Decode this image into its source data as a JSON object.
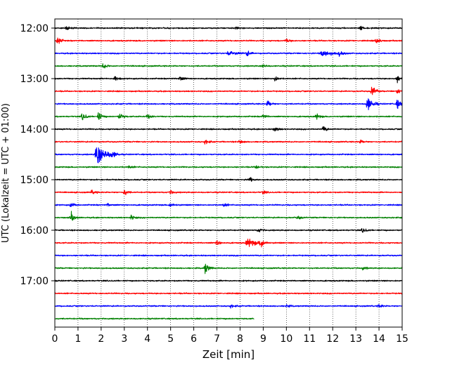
{
  "chart_data": {
    "type": "line",
    "title": "",
    "xlabel": "Zeit  [min]",
    "ylabel": "UTC (Lokalzeit = UTC + 01:00)",
    "x_ticks": [
      "0",
      "1",
      "2",
      "3",
      "4",
      "5",
      "6",
      "7",
      "8",
      "9",
      "10",
      "11",
      "12",
      "13",
      "14",
      "15"
    ],
    "xlim": [
      0,
      15
    ],
    "y_ticks": [
      "12:00",
      "13:00",
      "14:00",
      "15:00",
      "16:00",
      "17:00"
    ],
    "grid": "vertical dotted at each minute",
    "colors": [
      "#000000",
      "#ff0000",
      "#0000ff",
      "#008000"
    ],
    "trace_minutes": 15,
    "last_trace_end_min": 8.6,
    "traces": [
      {
        "start": "12:00",
        "color": "#000000",
        "events": [
          {
            "t": 0.5,
            "a": 0.35
          },
          {
            "t": 7.8,
            "a": 0.3
          },
          {
            "t": 13.2,
            "a": 0.45
          }
        ]
      },
      {
        "start": "12:15",
        "color": "#ff0000",
        "events": [
          {
            "t": 0.1,
            "a": 0.9
          },
          {
            "t": 10.0,
            "a": 0.35
          },
          {
            "t": 13.9,
            "a": 0.6
          }
        ]
      },
      {
        "start": "12:30",
        "color": "#0000ff",
        "events": [
          {
            "t": 7.5,
            "a": 0.5,
            "w": 0.8
          },
          {
            "t": 8.3,
            "a": 0.55
          },
          {
            "t": 11.5,
            "a": 0.6,
            "w": 1.2
          },
          {
            "t": 12.3,
            "a": 0.4
          }
        ]
      },
      {
        "start": "12:45",
        "color": "#008000",
        "events": [
          {
            "t": 2.1,
            "a": 0.6
          },
          {
            "t": 9.0,
            "a": 0.35
          }
        ]
      },
      {
        "start": "13:00",
        "color": "#000000",
        "events": [
          {
            "t": 2.6,
            "a": 0.7
          },
          {
            "t": 5.4,
            "a": 0.5
          },
          {
            "t": 9.5,
            "a": 0.55
          },
          {
            "t": 14.8,
            "a": 0.7
          }
        ]
      },
      {
        "start": "13:15",
        "color": "#ff0000",
        "events": [
          {
            "t": 13.7,
            "a": 1.2
          },
          {
            "t": 14.8,
            "a": 0.5
          }
        ]
      },
      {
        "start": "13:30",
        "color": "#0000ff",
        "events": [
          {
            "t": 9.2,
            "a": 0.7
          },
          {
            "t": 13.5,
            "a": 1.6,
            "w": 0.5
          },
          {
            "t": 14.8,
            "a": 1.0
          }
        ]
      },
      {
        "start": "13:45",
        "color": "#008000",
        "events": [
          {
            "t": 1.2,
            "a": 0.8
          },
          {
            "t": 1.9,
            "a": 0.8
          },
          {
            "t": 2.8,
            "a": 0.7
          },
          {
            "t": 4.0,
            "a": 0.5
          },
          {
            "t": 9.0,
            "a": 0.4
          },
          {
            "t": 11.3,
            "a": 0.5
          }
        ]
      },
      {
        "start": "14:00",
        "color": "#000000",
        "events": [
          {
            "t": 9.5,
            "a": 0.5
          },
          {
            "t": 11.6,
            "a": 0.6
          }
        ]
      },
      {
        "start": "14:15",
        "color": "#ff0000",
        "events": [
          {
            "t": 6.5,
            "a": 0.45
          },
          {
            "t": 8.0,
            "a": 0.4
          },
          {
            "t": 13.2,
            "a": 0.35
          }
        ]
      },
      {
        "start": "14:30",
        "color": "#0000ff",
        "events": [
          {
            "t": 1.8,
            "a": 2.2,
            "w": 1.0
          },
          {
            "t": 2.5,
            "a": 0.4
          }
        ]
      },
      {
        "start": "14:45",
        "color": "#008000",
        "events": [
          {
            "t": 3.2,
            "a": 0.3
          },
          {
            "t": 8.7,
            "a": 0.3
          }
        ]
      },
      {
        "start": "15:00",
        "color": "#000000",
        "events": [
          {
            "t": 8.4,
            "a": 0.5
          }
        ]
      },
      {
        "start": "15:15",
        "color": "#ff0000",
        "events": [
          {
            "t": 1.6,
            "a": 0.4
          },
          {
            "t": 3.0,
            "a": 0.6
          },
          {
            "t": 5.0,
            "a": 0.35
          },
          {
            "t": 9.0,
            "a": 0.3
          }
        ]
      },
      {
        "start": "15:30",
        "color": "#0000ff",
        "events": [
          {
            "t": 0.7,
            "a": 0.5
          },
          {
            "t": 2.3,
            "a": 0.3
          },
          {
            "t": 5.0,
            "a": 0.5
          },
          {
            "t": 7.3,
            "a": 0.4
          }
        ]
      },
      {
        "start": "15:45",
        "color": "#008000",
        "events": [
          {
            "t": 0.7,
            "a": 0.9
          },
          {
            "t": 3.3,
            "a": 0.5
          },
          {
            "t": 10.5,
            "a": 0.35
          }
        ]
      },
      {
        "start": "16:00",
        "color": "#000000",
        "events": [
          {
            "t": 8.8,
            "a": 0.4
          },
          {
            "t": 13.3,
            "a": 0.5
          }
        ]
      },
      {
        "start": "16:15",
        "color": "#ff0000",
        "events": [
          {
            "t": 7.0,
            "a": 0.4
          },
          {
            "t": 8.3,
            "a": 0.8,
            "w": 1.0
          },
          {
            "t": 8.9,
            "a": 0.9
          }
        ]
      },
      {
        "start": "16:30",
        "color": "#0000ff",
        "events": []
      },
      {
        "start": "16:45",
        "color": "#008000",
        "events": [
          {
            "t": 6.5,
            "a": 1.1
          },
          {
            "t": 13.3,
            "a": 0.3
          }
        ]
      },
      {
        "start": "17:00",
        "color": "#000000",
        "events": []
      },
      {
        "start": "17:15",
        "color": "#ff0000",
        "events": []
      },
      {
        "start": "17:30",
        "color": "#0000ff",
        "events": [
          {
            "t": 7.6,
            "a": 0.3
          },
          {
            "t": 10.0,
            "a": 0.25
          },
          {
            "t": 14.0,
            "a": 0.3
          }
        ]
      },
      {
        "start": "17:45",
        "color": "#008000",
        "events": []
      }
    ]
  }
}
